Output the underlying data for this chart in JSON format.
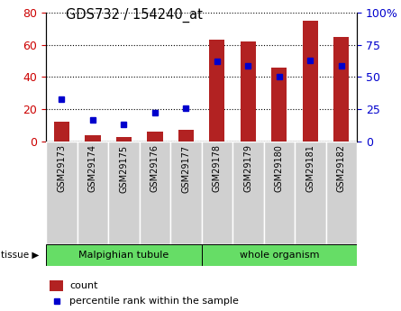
{
  "title": "GDS732 / 154240_at",
  "samples": [
    "GSM29173",
    "GSM29174",
    "GSM29175",
    "GSM29176",
    "GSM29177",
    "GSM29178",
    "GSM29179",
    "GSM29180",
    "GSM29181",
    "GSM29182"
  ],
  "counts": [
    12,
    4,
    3,
    6,
    7,
    63,
    62,
    46,
    75,
    65
  ],
  "percentiles": [
    33,
    17,
    13,
    22,
    26,
    62,
    59,
    50,
    63,
    59
  ],
  "bar_color": "#b22222",
  "dot_color": "#0000cd",
  "left_ylim": [
    0,
    80
  ],
  "right_ylim": [
    0,
    100
  ],
  "left_yticks": [
    0,
    20,
    40,
    60,
    80
  ],
  "right_yticks": [
    0,
    25,
    50,
    75,
    100
  ],
  "right_yticklabels": [
    "0",
    "25",
    "50",
    "75",
    "100%"
  ],
  "tick_label_color_left": "#cc0000",
  "tick_label_color_right": "#0000cd",
  "tissue_label": "tissue",
  "legend_count_label": "count",
  "legend_pct_label": "percentile rank within the sample",
  "group1_label": "Malpighian tubule",
  "group2_label": "whole organism",
  "tissue_color": "#66dd66",
  "xticklabel_bg": "#d0d0d0"
}
